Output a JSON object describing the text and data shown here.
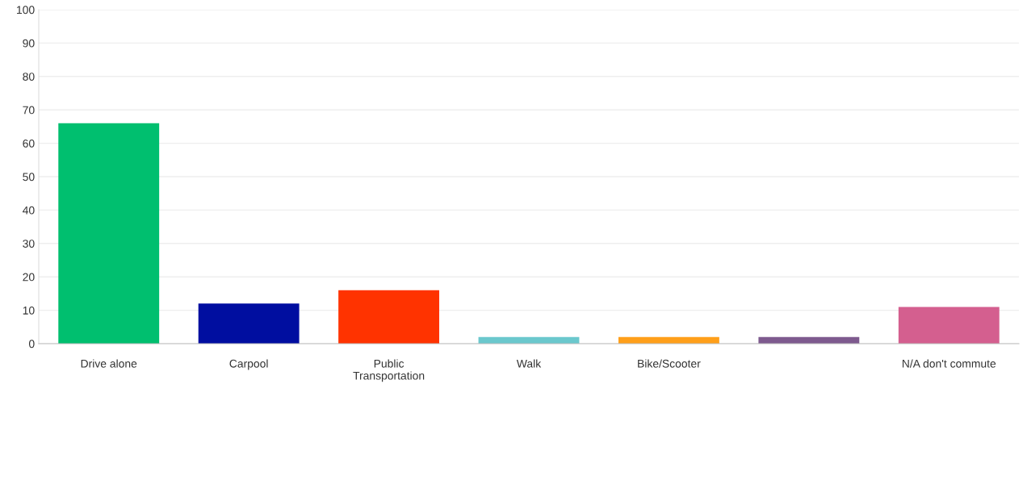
{
  "chart_data": {
    "type": "bar",
    "categories": [
      "Drive alone",
      "Carpool",
      "Public\nTransportation",
      "Walk",
      "Bike/Scooter",
      null,
      "N/A don't commute"
    ],
    "values": [
      66,
      12,
      16,
      2,
      2,
      2,
      11
    ],
    "colors": [
      "#00bf6f",
      "#000ea0",
      "#ff3300",
      "#6bc8cd",
      "#ff9f1a",
      "#7e5a8e",
      "#d45f8f"
    ],
    "ylim": [
      0,
      100
    ],
    "yticks": [
      0,
      10,
      20,
      30,
      40,
      50,
      60,
      70,
      80,
      90,
      100
    ],
    "grid": "y",
    "legend": false
  }
}
